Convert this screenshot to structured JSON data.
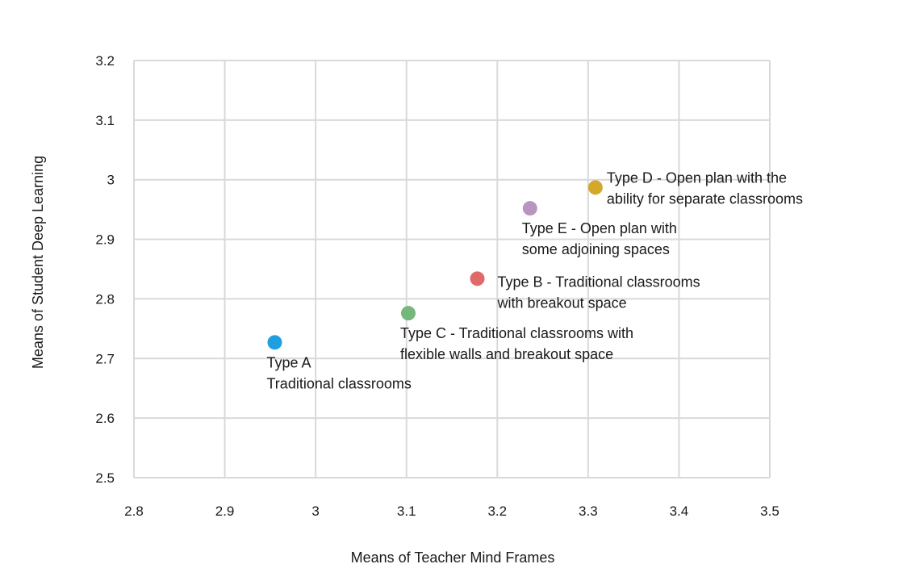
{
  "chart_data": {
    "type": "scatter",
    "title": "",
    "xlabel": "Means of Teacher Mind Frames",
    "ylabel": "Means of Student Deep Learning",
    "xlim": [
      2.8,
      3.5
    ],
    "ylim": [
      2.5,
      3.2
    ],
    "grid": true,
    "x_ticks": [
      "2.8",
      "2.9",
      "3",
      "3.1",
      "3.2",
      "3.3",
      "3.4",
      "3.5"
    ],
    "y_ticks": [
      "2.5",
      "2.6",
      "2.7",
      "2.8",
      "2.9",
      "3",
      "3.1",
      "3.2"
    ],
    "points": [
      {
        "name": "Type A",
        "x": 2.955,
        "y": 2.727,
        "color": "#1f9fe0",
        "label_lines": [
          "Type A",
          "Traditional classrooms"
        ],
        "label_placement": "below"
      },
      {
        "name": "Type C",
        "x": 3.102,
        "y": 2.776,
        "color": "#74b87a",
        "label_lines": [
          "Type C - Traditional classrooms with",
          "flexible walls and breakout space"
        ],
        "label_placement": "below"
      },
      {
        "name": "Type B",
        "x": 3.178,
        "y": 2.834,
        "color": "#e06a6a",
        "label_lines": [
          "Type B - Traditional classrooms",
          "with breakout space"
        ],
        "label_placement": "right"
      },
      {
        "name": "Type E",
        "x": 3.236,
        "y": 2.952,
        "color": "#b895c0",
        "label_lines": [
          "Type E - Open plan with",
          "some adjoining spaces"
        ],
        "label_placement": "below"
      },
      {
        "name": "Type D",
        "x": 3.308,
        "y": 2.987,
        "color": "#d4a82a",
        "label_lines": [
          "Type D - Open plan with the",
          "ability for separate classrooms"
        ],
        "label_placement": "right"
      }
    ]
  }
}
